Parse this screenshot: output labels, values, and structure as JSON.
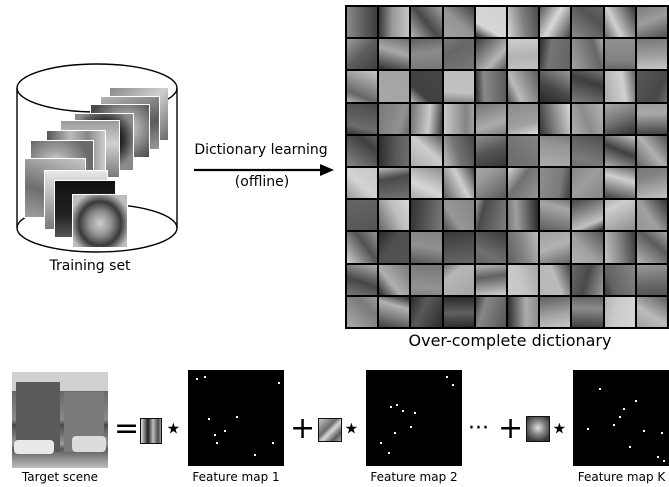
{
  "labels": {
    "training_set": "Training set",
    "dictionary_learning": "Dictionary learning",
    "offline": "(offline)",
    "over_complete_dictionary": "Over-complete dictionary",
    "target_scene": "Target scene",
    "feature_map_1": "Feature map 1",
    "feature_map_2": "Feature map 2",
    "feature_map_k": "Feature map K"
  },
  "operators": {
    "equals": "=",
    "star": "⋆",
    "plus": "+",
    "ellipsis": "···"
  },
  "dictionary_grid": {
    "rows": 10,
    "cols": 10
  },
  "colors": {
    "background": "#ffffff",
    "feature_map": "#000000",
    "dictionary_border": "#000000"
  }
}
